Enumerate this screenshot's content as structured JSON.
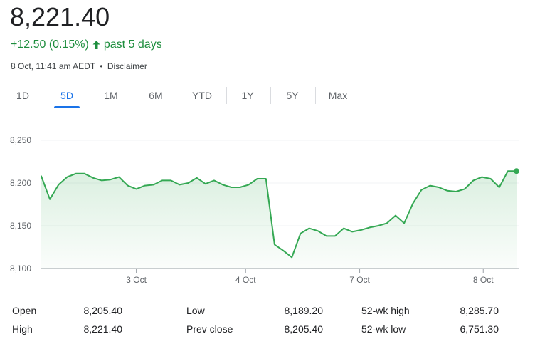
{
  "header": {
    "price": "8,221.40",
    "change": "+12.50 (0.15%)",
    "change_period": "past 5 days",
    "timestamp": "8 Oct, 11:41 am AEDT",
    "separator": "•",
    "disclaimer": "Disclaimer",
    "accent_color": "#1e8e3e"
  },
  "tabs": {
    "items": [
      "1D",
      "5D",
      "1M",
      "6M",
      "YTD",
      "1Y",
      "5Y",
      "Max"
    ],
    "active": "5D"
  },
  "chart_data": {
    "type": "area",
    "title": "",
    "xlabel": "",
    "ylabel": "",
    "ylim": [
      8100,
      8250
    ],
    "y_ticks": [
      8100,
      8150,
      8200,
      8250
    ],
    "y_tick_labels": [
      "8,100",
      "8,150",
      "8,200",
      "8,250"
    ],
    "x_tick_labels": [
      "3 Oct",
      "4 Oct",
      "7 Oct",
      "8 Oct"
    ],
    "x_tick_positions": [
      0.2,
      0.43,
      0.67,
      0.93
    ],
    "grid": true,
    "line_color": "#34a853",
    "series": [
      {
        "values": [
          8208,
          8181,
          8198,
          8207,
          8211,
          8211,
          8206,
          8203,
          8204,
          8207,
          8197,
          8193,
          8197,
          8198,
          8203,
          8203,
          8198,
          8200,
          8206,
          8199,
          8203,
          8198,
          8195,
          8195,
          8198,
          8205,
          8205,
          8128,
          8121,
          8113,
          8141,
          8147,
          8144,
          8138,
          8138,
          8147,
          8143,
          8145,
          8148,
          8150,
          8153,
          8162,
          8153,
          8176,
          8192,
          8197,
          8195,
          8191,
          8190,
          8193,
          8203,
          8207,
          8205,
          8195,
          8214,
          8214
        ]
      }
    ]
  },
  "stats": {
    "rows": [
      [
        {
          "label": "Open",
          "value": "8,205.40"
        },
        {
          "label": "Low",
          "value": "8,189.20"
        },
        {
          "label": "52-wk high",
          "value": "8,285.70"
        }
      ],
      [
        {
          "label": "High",
          "value": "8,221.40"
        },
        {
          "label": "Prev close",
          "value": "8,205.40"
        },
        {
          "label": "52-wk low",
          "value": "6,751.30"
        }
      ]
    ]
  }
}
